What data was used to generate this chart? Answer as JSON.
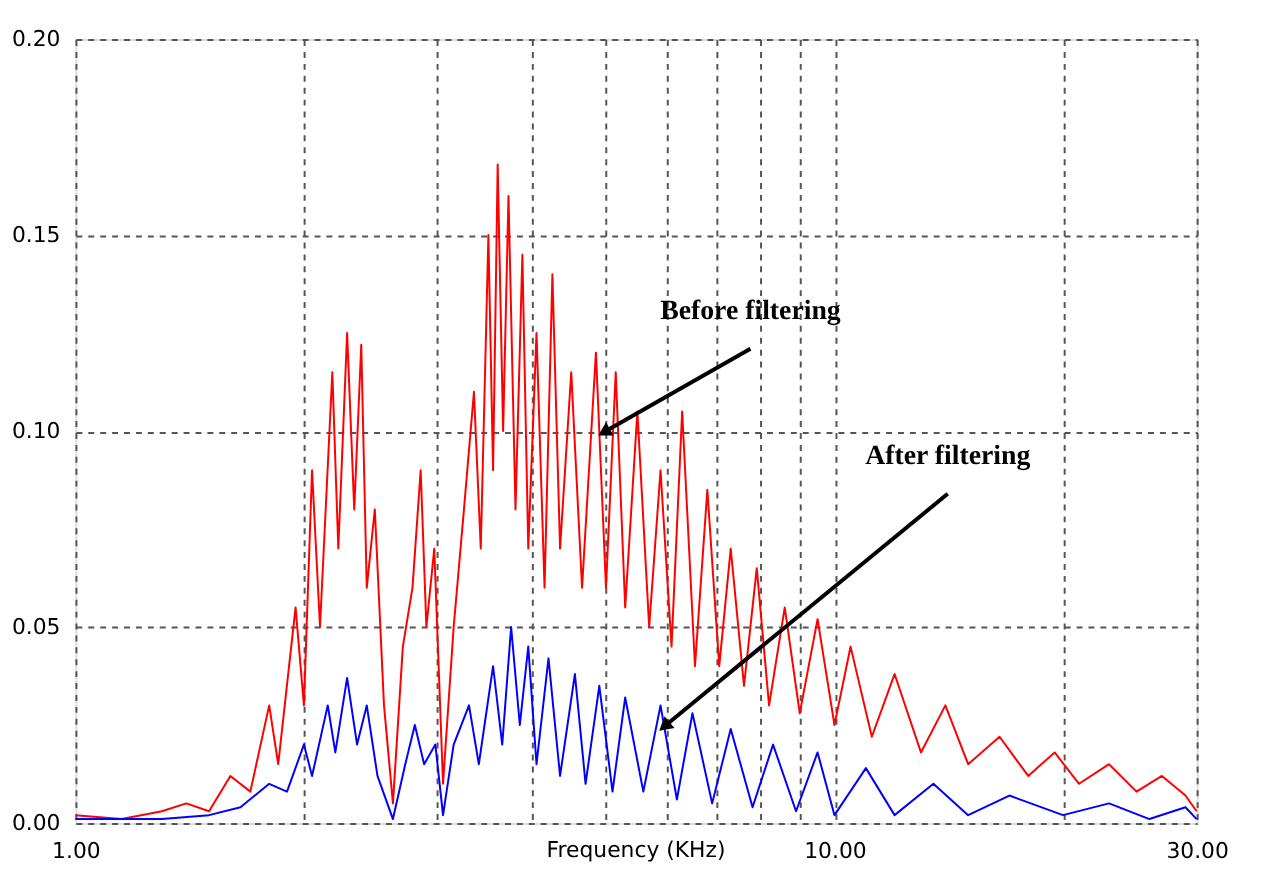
{
  "chart_data": {
    "type": "line",
    "xlabel": "Frequency (KHz)",
    "log": "x",
    "grid": true,
    "marker": "none",
    "line_style": "solid",
    "xlim": [
      1,
      30
    ],
    "xticks": [
      {
        "value": 1,
        "label": "1.00"
      },
      {
        "value": 2,
        "label": null
      },
      {
        "value": 3,
        "label": null
      },
      {
        "value": 4,
        "label": null
      },
      {
        "value": 5,
        "label": null
      },
      {
        "value": 6,
        "label": null
      },
      {
        "value": 7,
        "label": null
      },
      {
        "value": 8,
        "label": null
      },
      {
        "value": 9,
        "label": null
      },
      {
        "value": 10,
        "label": "10.00"
      },
      {
        "value": 20,
        "label": null
      },
      {
        "value": 30,
        "label": "30.00"
      }
    ],
    "ylim": [
      0,
      0.2
    ],
    "yticks": [
      {
        "value": 0,
        "label": "0.00"
      },
      {
        "value": 0.05,
        "label": "0.05"
      },
      {
        "value": 0.1,
        "label": "0.10"
      },
      {
        "value": 0.15,
        "label": "0.15"
      },
      {
        "value": 0.2,
        "label": "0.20"
      }
    ],
    "series": [
      {
        "color": "#ff0000",
        "x": [
          1.0,
          1.15,
          1.3,
          1.4,
          1.5,
          1.6,
          1.7,
          1.8,
          1.85,
          1.95,
          2.0,
          2.05,
          2.1,
          2.18,
          2.22,
          2.28,
          2.33,
          2.38,
          2.42,
          2.48,
          2.55,
          2.62,
          2.7,
          2.78,
          2.85,
          2.9,
          2.97,
          3.05,
          3.15,
          3.25,
          3.35,
          3.42,
          3.5,
          3.55,
          3.6,
          3.66,
          3.72,
          3.8,
          3.88,
          3.95,
          4.05,
          4.15,
          4.25,
          4.35,
          4.5,
          4.65,
          4.85,
          5.0,
          5.15,
          5.3,
          5.5,
          5.7,
          5.9,
          6.1,
          6.3,
          6.55,
          6.8,
          7.05,
          7.3,
          7.6,
          7.9,
          8.2,
          8.6,
          9.0,
          9.5,
          10.0,
          10.5,
          11.2,
          12.0,
          13.0,
          14.0,
          15.0,
          16.5,
          18.0,
          19.5,
          21.0,
          23.0,
          25.0,
          27.0,
          29.0,
          30.0
        ],
        "values": [
          0.002,
          0.001,
          0.003,
          0.005,
          0.003,
          0.012,
          0.008,
          0.03,
          0.015,
          0.055,
          0.03,
          0.09,
          0.05,
          0.115,
          0.07,
          0.125,
          0.08,
          0.122,
          0.06,
          0.08,
          0.03,
          0.005,
          0.045,
          0.06,
          0.09,
          0.05,
          0.07,
          0.01,
          0.05,
          0.08,
          0.11,
          0.07,
          0.15,
          0.09,
          0.168,
          0.1,
          0.16,
          0.08,
          0.145,
          0.07,
          0.125,
          0.06,
          0.14,
          0.07,
          0.115,
          0.06,
          0.12,
          0.06,
          0.115,
          0.055,
          0.105,
          0.05,
          0.09,
          0.045,
          0.105,
          0.04,
          0.085,
          0.04,
          0.07,
          0.035,
          0.065,
          0.03,
          0.055,
          0.028,
          0.052,
          0.025,
          0.045,
          0.022,
          0.038,
          0.018,
          0.03,
          0.015,
          0.022,
          0.012,
          0.018,
          0.01,
          0.015,
          0.008,
          0.012,
          0.007,
          0.003
        ]
      },
      {
        "color": "#0000ff",
        "x": [
          1.0,
          1.3,
          1.5,
          1.65,
          1.8,
          1.9,
          2.0,
          2.05,
          2.15,
          2.2,
          2.28,
          2.35,
          2.42,
          2.5,
          2.62,
          2.72,
          2.8,
          2.88,
          2.98,
          3.05,
          3.15,
          3.3,
          3.4,
          3.55,
          3.65,
          3.75,
          3.85,
          3.95,
          4.05,
          4.2,
          4.35,
          4.55,
          4.7,
          4.9,
          5.1,
          5.3,
          5.6,
          5.9,
          6.2,
          6.5,
          6.9,
          7.3,
          7.8,
          8.3,
          8.9,
          9.5,
          10.0,
          11.0,
          12.0,
          13.5,
          15.0,
          17.0,
          20.0,
          23.0,
          26.0,
          29.0,
          30.0
        ],
        "values": [
          0.001,
          0.001,
          0.002,
          0.004,
          0.01,
          0.008,
          0.02,
          0.012,
          0.03,
          0.018,
          0.037,
          0.02,
          0.03,
          0.012,
          0.001,
          0.015,
          0.025,
          0.015,
          0.02,
          0.002,
          0.02,
          0.03,
          0.015,
          0.04,
          0.02,
          0.05,
          0.025,
          0.045,
          0.015,
          0.042,
          0.012,
          0.038,
          0.01,
          0.035,
          0.008,
          0.032,
          0.008,
          0.03,
          0.006,
          0.028,
          0.005,
          0.024,
          0.004,
          0.02,
          0.003,
          0.018,
          0.002,
          0.014,
          0.002,
          0.01,
          0.002,
          0.007,
          0.002,
          0.005,
          0.001,
          0.004,
          0.001
        ]
      }
    ],
    "annotations": [
      {
        "text": "Before filtering",
        "x": 5.0,
        "y": 0.1
      },
      {
        "text": "After filtering",
        "x": 6.0,
        "y": 0.025
      }
    ]
  }
}
